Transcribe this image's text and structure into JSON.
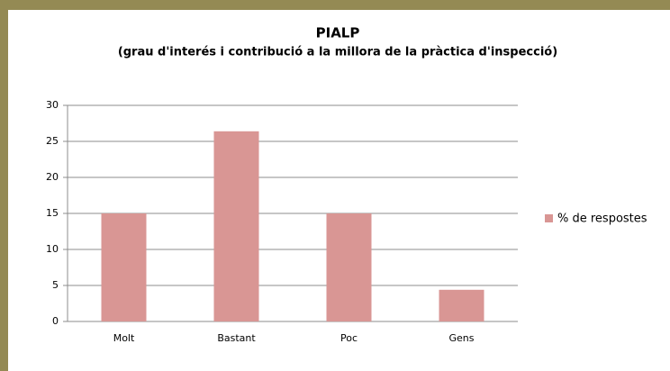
{
  "chart_data": {
    "type": "bar",
    "title": "PIALP",
    "subtitle": "(grau d'interés i contribució a la millora de la pràctica d'inspecció)",
    "categories": [
      "Molt",
      "Bastant",
      "Poc",
      "Gens"
    ],
    "series": [
      {
        "name": "% de respostes",
        "color": "#d99694",
        "values": [
          15,
          26.4,
          15,
          4.4
        ]
      }
    ],
    "ylim": [
      0,
      30
    ],
    "yticks": [
      0,
      5,
      10,
      15,
      20,
      25,
      30
    ],
    "grid": true,
    "legend": "right"
  }
}
